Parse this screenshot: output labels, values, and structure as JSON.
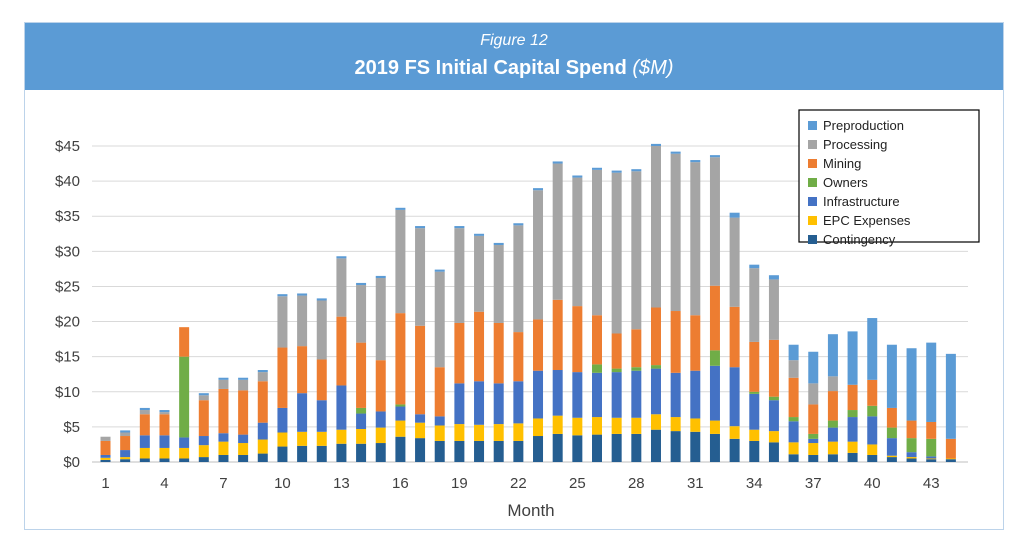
{
  "header": {
    "figure_label": "Figure 12",
    "title": "2019 FS Initial Capital Spend",
    "title_unit": "($M)"
  },
  "chart_data": {
    "type": "bar",
    "stacked": true,
    "title": "2019 FS Initial Capital Spend ($M)",
    "xlabel": "Month",
    "ylabel": "",
    "ylim": [
      0,
      45
    ],
    "yticks": [
      0,
      5,
      10,
      15,
      20,
      25,
      30,
      35,
      40,
      45
    ],
    "ytick_labels": [
      "$0",
      "$5",
      "$10",
      "$15",
      "$20",
      "$25",
      "$30",
      "$35",
      "$40",
      "$45"
    ],
    "grid": true,
    "legend_position": "top-right",
    "categories": [
      1,
      2,
      3,
      4,
      5,
      6,
      7,
      8,
      9,
      10,
      11,
      12,
      13,
      14,
      15,
      16,
      17,
      18,
      19,
      20,
      21,
      22,
      23,
      24,
      25,
      26,
      27,
      28,
      29,
      30,
      31,
      32,
      33,
      34,
      35,
      36,
      37,
      38,
      39,
      40,
      41,
      42,
      43,
      44
    ],
    "xtick_labels": [
      "1",
      "4",
      "7",
      "10",
      "13",
      "16",
      "19",
      "22",
      "25",
      "28",
      "31",
      "34",
      "37",
      "40",
      "43"
    ],
    "series": [
      {
        "name": "Contingency",
        "color": "#255e91",
        "values": [
          0.3,
          0.4,
          0.5,
          0.5,
          0.5,
          0.7,
          1.0,
          1.0,
          1.2,
          2.2,
          2.3,
          2.3,
          2.6,
          2.6,
          2.7,
          3.6,
          3.4,
          3.0,
          3.0,
          3.0,
          3.0,
          3.0,
          3.7,
          4.0,
          3.8,
          3.9,
          4.0,
          4.0,
          4.6,
          4.4,
          4.3,
          4.0,
          3.3,
          3.0,
          2.8,
          1.1,
          1.0,
          1.1,
          1.3,
          1.0,
          0.7,
          0.5,
          0.4,
          0.4
        ]
      },
      {
        "name": "EPC Expenses",
        "color": "#ffc000",
        "values": [
          0.3,
          0.3,
          1.5,
          1.5,
          1.5,
          1.7,
          1.9,
          1.7,
          2.0,
          2.0,
          2.0,
          2.0,
          2.0,
          2.1,
          2.2,
          2.3,
          2.2,
          2.2,
          2.4,
          2.3,
          2.4,
          2.5,
          2.5,
          2.6,
          2.5,
          2.5,
          2.3,
          2.3,
          2.2,
          2.0,
          1.9,
          1.9,
          1.8,
          1.6,
          1.6,
          1.7,
          1.7,
          1.8,
          1.6,
          1.5,
          0.2,
          0.2,
          0.1,
          0.1
        ]
      },
      {
        "name": "Infrastructure",
        "color": "#4472c4",
        "values": [
          0.4,
          1.0,
          1.8,
          1.8,
          1.5,
          1.3,
          1.2,
          1.2,
          2.4,
          3.5,
          5.5,
          4.5,
          6.3,
          2.2,
          2.3,
          2.0,
          1.2,
          1.3,
          5.8,
          6.2,
          5.8,
          6.0,
          6.8,
          6.5,
          6.5,
          6.3,
          6.5,
          6.7,
          6.5,
          6.3,
          6.8,
          7.8,
          8.4,
          5.1,
          4.4,
          3.0,
          0.6,
          2.0,
          3.5,
          4.0,
          2.5,
          0.7,
          0.3,
          0.0
        ]
      },
      {
        "name": "Owners",
        "color": "#70ad47",
        "values": [
          0.0,
          0.0,
          0.0,
          0.0,
          11.5,
          0.0,
          0.0,
          0.0,
          0.0,
          0.0,
          0.0,
          0.0,
          0.0,
          0.8,
          0.0,
          0.3,
          0.0,
          0.0,
          0.0,
          0.0,
          0.0,
          0.0,
          0.0,
          0.0,
          0.0,
          1.2,
          0.5,
          0.5,
          0.5,
          0.0,
          0.0,
          2.2,
          0.0,
          0.3,
          0.5,
          0.6,
          0.7,
          1.0,
          1.0,
          1.5,
          1.5,
          2.0,
          2.5,
          0.0
        ]
      },
      {
        "name": "Mining",
        "color": "#ed7d31",
        "values": [
          2.0,
          2.0,
          3.0,
          3.0,
          4.2,
          5.1,
          6.3,
          6.3,
          5.9,
          8.6,
          6.7,
          5.8,
          9.8,
          9.3,
          7.3,
          13.0,
          12.6,
          7.0,
          8.6,
          9.9,
          8.6,
          7.0,
          7.3,
          10.0,
          9.4,
          7.0,
          5.0,
          5.4,
          8.2,
          8.8,
          7.9,
          9.2,
          8.6,
          7.1,
          8.1,
          5.6,
          4.2,
          4.2,
          3.6,
          3.7,
          2.8,
          2.5,
          2.4,
          2.8
        ]
      },
      {
        "name": "Processing",
        "color": "#a5a5a5",
        "values": [
          0.6,
          0.5,
          0.6,
          0.3,
          0.0,
          0.7,
          1.3,
          1.5,
          1.3,
          7.3,
          7.2,
          8.4,
          8.3,
          8.2,
          11.7,
          14.7,
          13.9,
          13.6,
          13.5,
          10.8,
          11.1,
          15.2,
          18.4,
          19.4,
          18.3,
          20.7,
          22.9,
          22.5,
          23.0,
          22.4,
          21.8,
          18.3,
          12.7,
          10.5,
          8.6,
          2.5,
          3.0,
          2.1,
          0.0,
          0.0,
          0.0,
          0.0,
          0.0,
          0.0
        ]
      },
      {
        "name": "Preproduction",
        "color": "#5b9bd5",
        "values": [
          0.0,
          0.3,
          0.3,
          0.3,
          0.0,
          0.3,
          0.3,
          0.3,
          0.3,
          0.3,
          0.3,
          0.3,
          0.3,
          0.3,
          0.3,
          0.3,
          0.3,
          0.3,
          0.3,
          0.3,
          0.3,
          0.3,
          0.3,
          0.3,
          0.3,
          0.3,
          0.3,
          0.3,
          0.3,
          0.3,
          0.3,
          0.3,
          0.7,
          0.5,
          0.6,
          2.2,
          4.5,
          6.0,
          7.6,
          8.8,
          9.0,
          10.3,
          11.3,
          12.1
        ]
      }
    ]
  }
}
